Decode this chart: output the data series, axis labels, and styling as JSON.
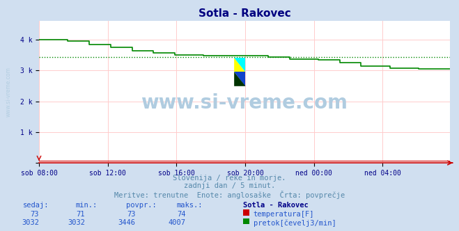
{
  "title": "Sotla - Rakovec",
  "title_color": "#000080",
  "bg_color": "#d0dff0",
  "plot_bg_color": "#ffffff",
  "grid_color": "#ffcccc",
  "xlabel_ticks": [
    "sob 08:00",
    "sob 12:00",
    "sob 16:00",
    "sob 20:00",
    "ned 00:00",
    "ned 04:00"
  ],
  "ytick_vals": [
    0,
    1000,
    2000,
    3000,
    4000
  ],
  "ytick_labels": [
    "",
    "1 k",
    "2 k",
    "3 k",
    "4 k"
  ],
  "ylim": [
    0,
    4620
  ],
  "temp_color": "#cc0000",
  "flow_color": "#008800",
  "watermark_color": "#b0cce0",
  "subtitle_color": "#5588aa",
  "subtitle1": "Slovenija / reke in morje.",
  "subtitle2": "zadnji dan / 5 minut.",
  "subtitle3": "Meritve: trenutne  Enote: anglosaške  Črta: povprečje",
  "table_color": "#2255cc",
  "table_header_bold": "#000088",
  "table_headers": [
    "sedaj:",
    "min.:",
    "povpr.:",
    "maks.:",
    "Sotla - Rakovec"
  ],
  "table_row1": [
    "73",
    "71",
    "73",
    "74"
  ],
  "table_row2": [
    "3032",
    "3032",
    "3446",
    "4007"
  ],
  "table_label1": "temperatura[F]",
  "table_label2": "pretok[čevelj3/min]",
  "tick_color": "#000088",
  "axis_color": "#cc0000",
  "n_points": 288,
  "flow_avg": 3446,
  "tick_x_idx": [
    0,
    48,
    96,
    144,
    192,
    240
  ]
}
